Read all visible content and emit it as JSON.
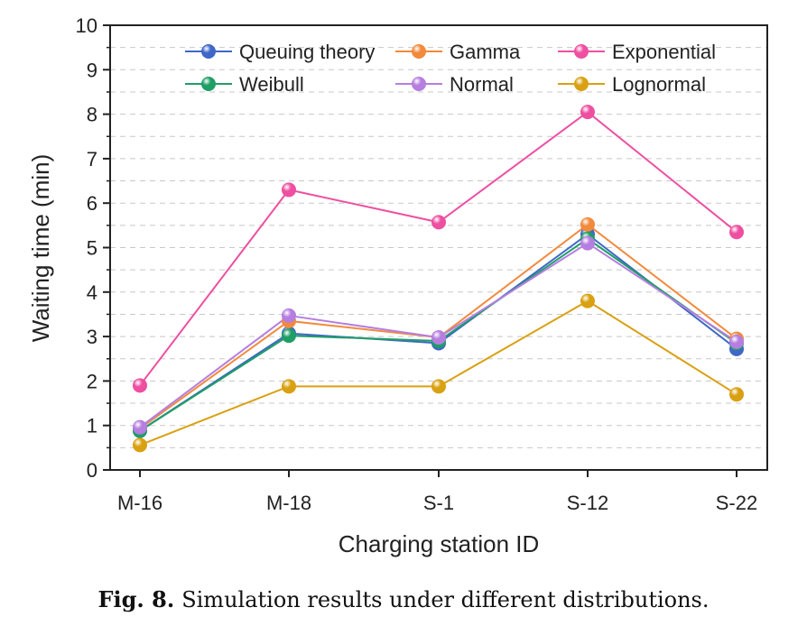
{
  "chart_data": {
    "type": "line",
    "xlabel": "Charging station ID",
    "ylabel": "Waiting time (min)",
    "categories": [
      "M-16",
      "M-18",
      "S-1",
      "S-12",
      "S-22"
    ],
    "ylim": [
      0,
      10
    ],
    "yticks": [
      0,
      1,
      2,
      3,
      4,
      5,
      6,
      7,
      8,
      9,
      10
    ],
    "grid": true,
    "legend": "top",
    "series": [
      {
        "name": "Queuing theory",
        "color": "#3f66c8",
        "values": [
          0.88,
          3.07,
          2.85,
          5.3,
          2.72
        ]
      },
      {
        "name": "Gamma",
        "color": "#f28a3c",
        "values": [
          0.93,
          3.35,
          2.98,
          5.52,
          2.95
        ]
      },
      {
        "name": "Exponential",
        "color": "#ee4fa0",
        "values": [
          1.9,
          6.3,
          5.57,
          8.05,
          5.35
        ]
      },
      {
        "name": "Weibull",
        "color": "#1f9e66",
        "values": [
          0.88,
          3.02,
          2.9,
          5.2,
          2.85
        ]
      },
      {
        "name": "Normal",
        "color": "#b57ee0",
        "values": [
          0.96,
          3.47,
          2.98,
          5.1,
          2.88
        ]
      },
      {
        "name": "Lognormal",
        "color": "#d9a012",
        "values": [
          0.56,
          1.88,
          1.88,
          3.8,
          1.7
        ]
      }
    ]
  },
  "caption": {
    "label": "Fig. 8.",
    "text": "Simulation results under different distributions."
  }
}
